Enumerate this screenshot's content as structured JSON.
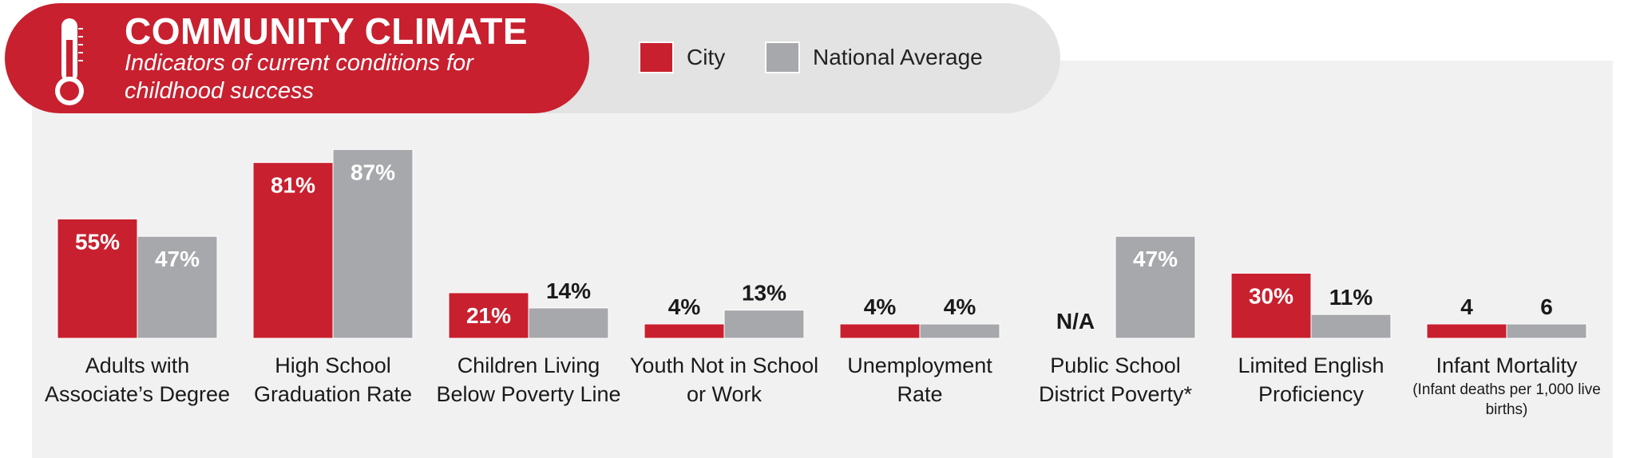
{
  "header": {
    "title": "COMMUNITY CLIMATE",
    "subtitle": "Indicators of current conditions for childhood success"
  },
  "legend": {
    "city": "City",
    "national": "National Average"
  },
  "colors": {
    "city": "#c8202f",
    "national": "#a7a8ac",
    "header_red": "#c8202f"
  },
  "chart_data": {
    "type": "bar",
    "title": "COMMUNITY CLIMATE",
    "subtitle": "Indicators of current conditions for childhood success",
    "categories": [
      "Adults with Associate’s Degree",
      "High School Graduation Rate",
      "Children Living Below Poverty Line",
      "Youth Not in School or Work",
      "Unemployment Rate",
      "Public School District Poverty*",
      "Limited English Proficiency",
      "Infant Mortality"
    ],
    "category_notes": [
      "",
      "",
      "",
      "",
      "",
      "",
      "",
      "(Infant deaths per 1,000 live births)"
    ],
    "series": [
      {
        "name": "City",
        "values": [
          55,
          81,
          21,
          4,
          4,
          null,
          30,
          4
        ],
        "labels": [
          "55%",
          "81%",
          "21%",
          "4%",
          "4%",
          "N/A",
          "30%",
          "4"
        ]
      },
      {
        "name": "National Average",
        "values": [
          47,
          87,
          14,
          13,
          4,
          47,
          11,
          6
        ],
        "labels": [
          "47%",
          "87%",
          "14%",
          "13%",
          "4%",
          "47%",
          "11%",
          "6"
        ]
      }
    ],
    "legend_position": "top",
    "grid": false
  }
}
